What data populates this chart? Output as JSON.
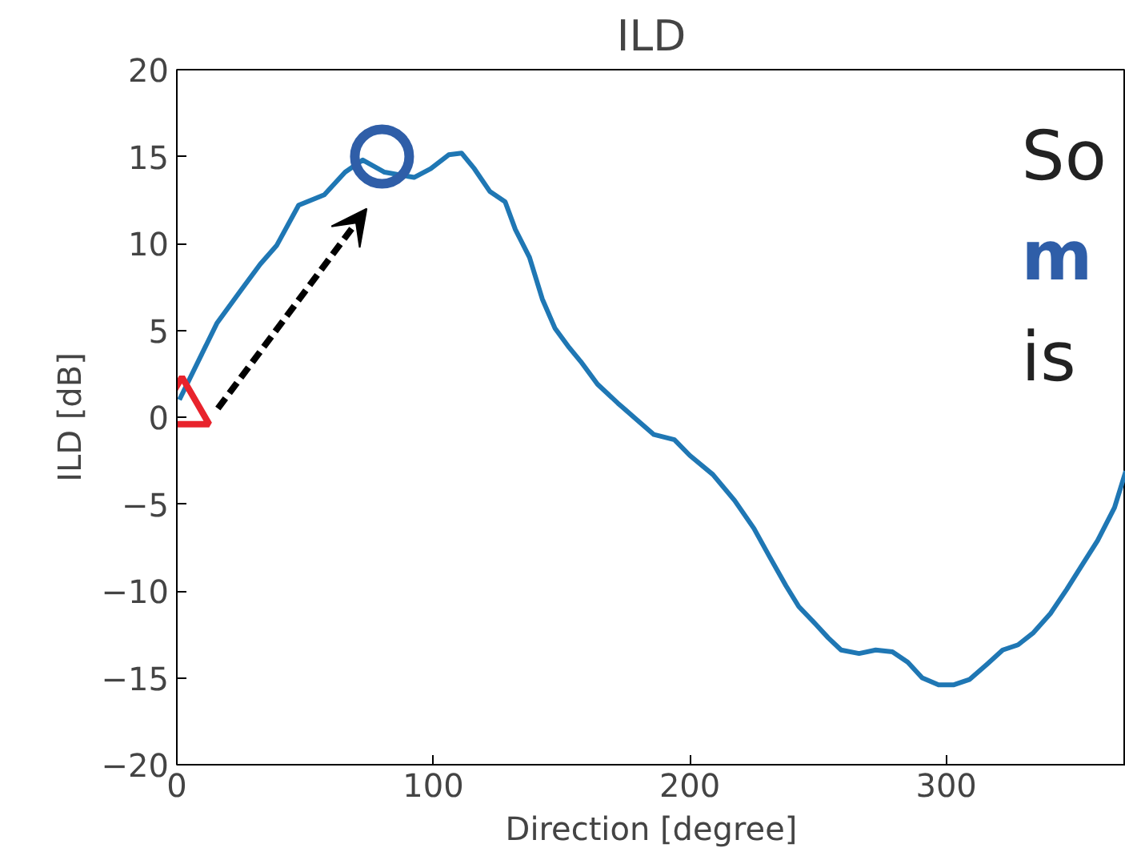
{
  "chart_data": {
    "type": "line",
    "title": "ILD",
    "xlabel": "Direction [degree]",
    "ylabel": "ILD [dB]",
    "xlim": [
      0,
      370
    ],
    "ylim": [
      -20,
      20
    ],
    "xticks": [
      0,
      100,
      200,
      300
    ],
    "yticks": [
      {
        "value": -20,
        "label": "−20"
      },
      {
        "value": -15,
        "label": "−15"
      },
      {
        "value": -10,
        "label": "−10"
      },
      {
        "value": -5,
        "label": "−5"
      },
      0,
      5,
      10,
      15,
      20
    ],
    "grid": false,
    "series": [
      {
        "color": "#1f77b4",
        "marker": "none",
        "x": [
          1,
          15.6,
          25,
          32.5,
          39,
          47.5,
          57.5,
          65.6,
          72.5,
          81,
          92.5,
          99,
          106,
          111,
          116,
          122,
          128,
          132,
          137.5,
          142.5,
          147.5,
          153,
          157.5,
          164,
          172,
          179,
          186,
          194,
          200,
          209,
          217.5,
          225,
          231,
          237.5,
          242.5,
          249,
          254,
          259,
          266,
          272.5,
          279,
          285,
          290.6,
          297,
          303,
          309,
          316,
          322,
          328,
          334,
          340.6,
          347,
          353,
          359,
          365.6,
          370
        ],
        "values": [
          1,
          5.4,
          7.3,
          8.8,
          9.9,
          12.2,
          12.8,
          14.1,
          14.8,
          14.1,
          13.8,
          14.3,
          15.1,
          15.2,
          14.3,
          13,
          12.4,
          10.8,
          9.2,
          6.8,
          5.1,
          4,
          3.2,
          1.9,
          0.8,
          -0.1,
          -1,
          -1.3,
          -2.2,
          -3.3,
          -4.8,
          -6.4,
          -8,
          -9.7,
          -10.9,
          -11.9,
          -12.7,
          -13.4,
          -13.6,
          -13.4,
          -13.5,
          -14.1,
          -15,
          -15.4,
          -15.4,
          -15.1,
          -14.2,
          -13.4,
          -13.1,
          -12.4,
          -11.3,
          -9.9,
          -8.5,
          -7.1,
          -5.2,
          -3.1
        ]
      },
      {
        "type": "scatter",
        "color": "#e8232c",
        "marker": "triangle",
        "x": [
          2
        ],
        "values": [
          0.5
        ]
      },
      {
        "type": "scatter",
        "color": "#2f5ea8",
        "marker": "circle",
        "x": [
          80
        ],
        "values": [
          15
        ]
      }
    ],
    "annotations": [
      "So",
      "m",
      "is"
    ]
  }
}
